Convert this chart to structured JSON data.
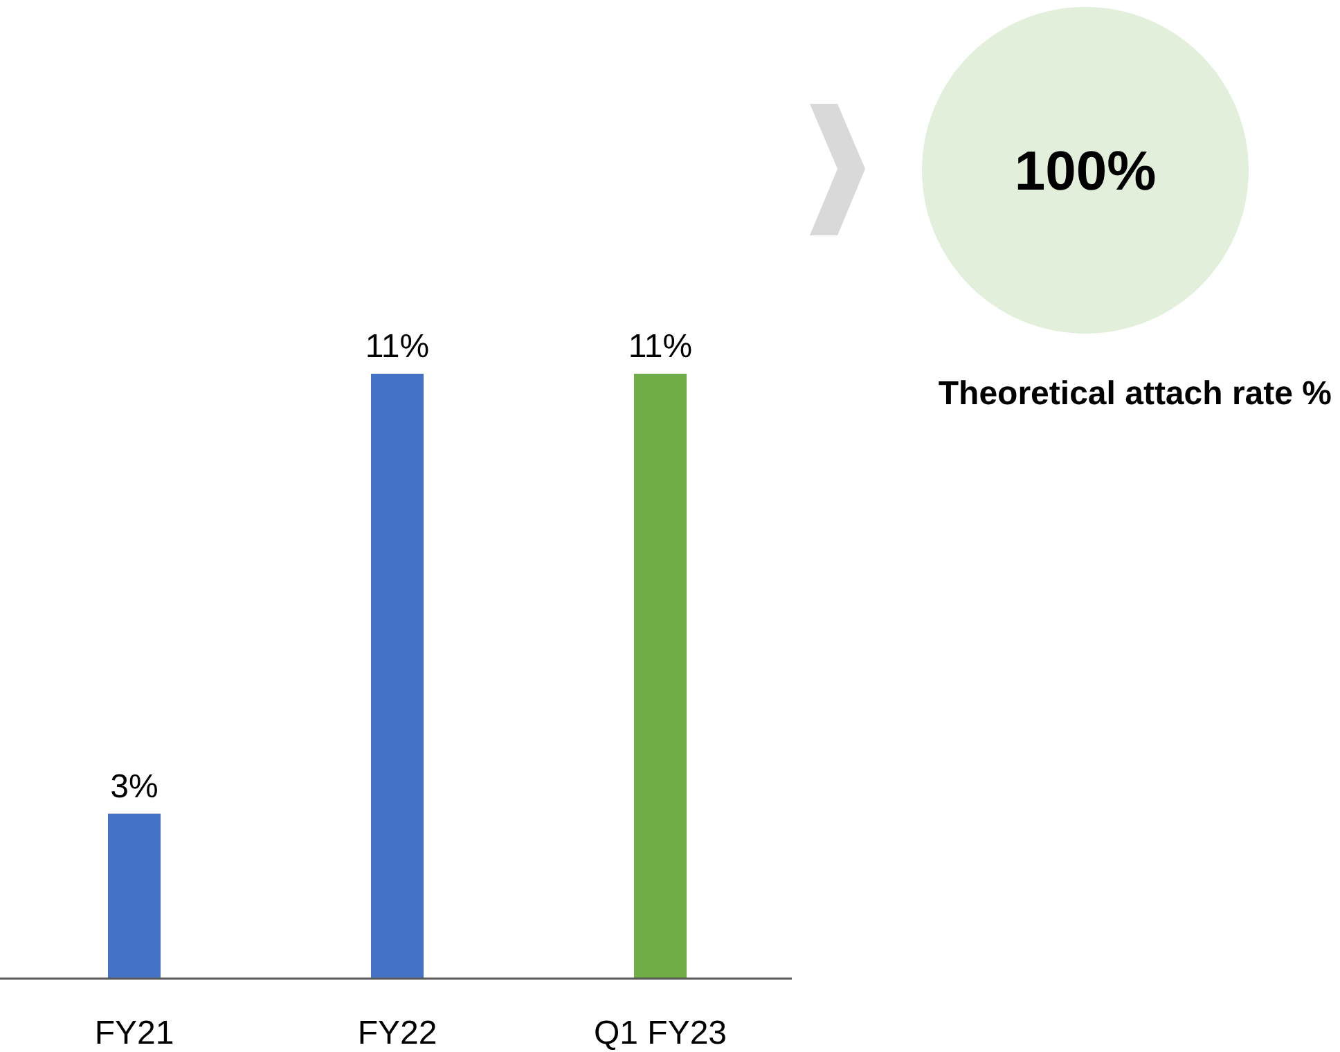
{
  "chart_data": {
    "type": "bar",
    "categories": [
      "FY21",
      "FY22",
      "Q1 FY23"
    ],
    "values": [
      3,
      11,
      11
    ],
    "colors": [
      "#4472c4",
      "#4472c4",
      "#70ad47"
    ],
    "value_labels": [
      "3%",
      "11%",
      "11%"
    ],
    "annotations": [
      "100%",
      "Theoretical attach rate %"
    ]
  }
}
